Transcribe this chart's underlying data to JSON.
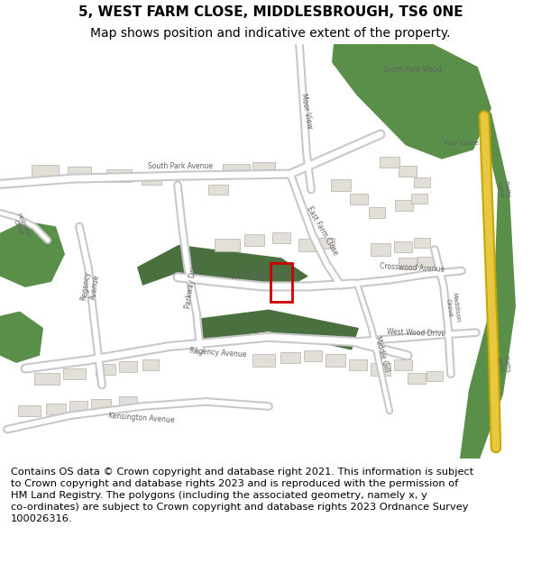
{
  "title_line1": "5, WEST FARM CLOSE, MIDDLESBROUGH, TS6 0NE",
  "title_line2": "Map shows position and indicative extent of the property.",
  "footer_text": "Contains OS data © Crown copyright and database right 2021. This information is subject to Crown copyright and database rights 2023 and is reproduced with the permission of HM Land Registry. The polygons (including the associated geometry, namely x, y co-ordinates) are subject to Crown copyright and database rights 2023 Ordnance Survey 100026316.",
  "title_fontsize": 11,
  "title2_fontsize": 10,
  "footer_fontsize": 8.2,
  "bg_color": "#ffffff",
  "title_color": "#000000",
  "footer_color": "#000000",
  "map_bg": "#f0efeb",
  "property_rect_color": "#cc0000",
  "green_dark": "#5a8f4a",
  "yellow_road": "#e8c840"
}
